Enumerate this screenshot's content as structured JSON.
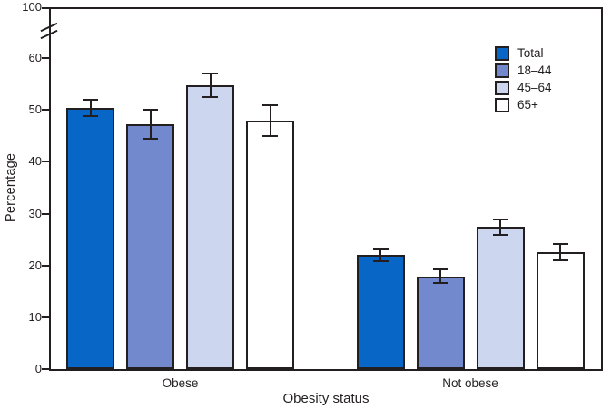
{
  "figure": {
    "ylabel": "Percentage",
    "xlabel": "Obesity status"
  },
  "chart_data": {
    "type": "bar",
    "title": "",
    "xlabel": "Obesity status",
    "ylabel": "Percentage",
    "categories": [
      "Obese",
      "Not obese"
    ],
    "series": [
      {
        "name": "Total",
        "color": "#0866C6",
        "values": [
          50.4,
          22.0
        ],
        "ci_low": [
          48.8,
          20.9
        ],
        "ci_high": [
          52.0,
          23.1
        ]
      },
      {
        "name": "18–44",
        "color": "#7289CE",
        "values": [
          47.2,
          17.9
        ],
        "ci_low": [
          44.4,
          16.7
        ],
        "ci_high": [
          50.0,
          19.2
        ]
      },
      {
        "name": "45–64",
        "color": "#CDD6EF",
        "values": [
          54.8,
          27.4
        ],
        "ci_low": [
          52.5,
          25.9
        ],
        "ci_high": [
          57.0,
          28.9
        ]
      },
      {
        "name": "65+",
        "color": "#FFFFFF",
        "values": [
          47.9,
          22.6
        ],
        "ci_low": [
          44.9,
          21.0
        ],
        "ci_high": [
          50.9,
          24.1
        ]
      }
    ],
    "yticks": [
      0,
      10,
      20,
      30,
      40,
      50,
      60,
      100
    ],
    "ylim": [
      0,
      100
    ],
    "axis_break": {
      "between": [
        60,
        100
      ]
    },
    "error_bars": true,
    "legend_position": "top-right-inside",
    "grid": false
  },
  "colors": {
    "axis": "#231F20",
    "background": "#FFFFFF"
  }
}
